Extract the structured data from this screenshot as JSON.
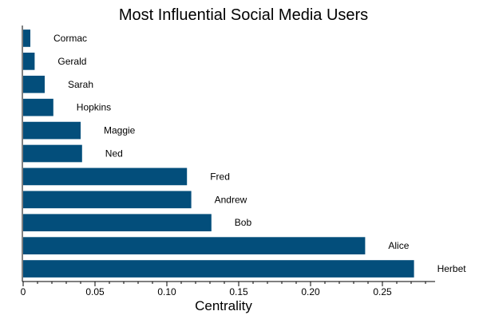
{
  "chart_data": {
    "type": "bar",
    "orientation": "horizontal",
    "title": "Most Influential Social Media Users",
    "xlabel": "Centrality",
    "ylabel": "",
    "xlim": [
      0,
      0.28
    ],
    "xticks": [
      0,
      0.05,
      0.1,
      0.15,
      0.2,
      0.25
    ],
    "xtick_labels": [
      "0",
      "0.05",
      "0.10",
      "0.15",
      "0.20",
      "0.25"
    ],
    "categories": [
      "Cormac",
      "Gerald",
      "Sarah",
      "Hopkins",
      "Maggie",
      "Ned",
      "Fred",
      "Andrew",
      "Bob",
      "Alice",
      "Herbet"
    ],
    "values": [
      0.005,
      0.008,
      0.015,
      0.021,
      0.04,
      0.041,
      0.114,
      0.117,
      0.131,
      0.238,
      0.272
    ],
    "bar_color": "#034e7b",
    "grid": false,
    "legend": "none"
  }
}
